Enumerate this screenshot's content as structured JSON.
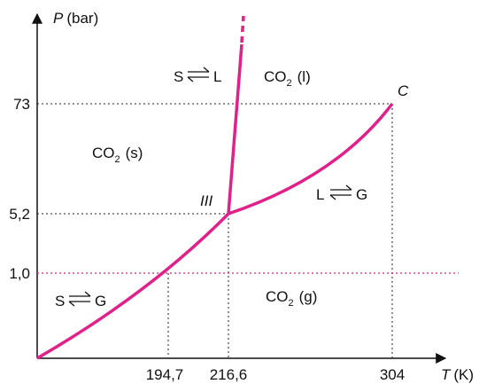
{
  "axes": {
    "y_symbol": "P",
    "y_unit": "(bar)",
    "x_symbol": "T",
    "x_unit": "(K)",
    "y_ticks": [
      "73",
      "5,2",
      "1,0"
    ],
    "x_ticks": [
      "194,7",
      "216,6",
      "304"
    ]
  },
  "points": {
    "critical": "C",
    "triple": "III"
  },
  "regions": {
    "solid_co2": "CO",
    "solid_sub": "2",
    "solid_state": "(s)",
    "liquid_co2": "CO",
    "liquid_sub": "2",
    "liquid_state": "(l)",
    "gas_co2": "CO",
    "gas_sub": "2",
    "gas_state": "(g)"
  },
  "equilibria": {
    "solid_liquid": {
      "left": "S",
      "right": "L"
    },
    "liquid_gas": {
      "left": "L",
      "right": "G"
    },
    "solid_gas": {
      "left": "S",
      "right": "G"
    }
  },
  "colors": {
    "curve": "#e0218a",
    "guide": "#222222",
    "atm_line": "#e0218a"
  }
}
